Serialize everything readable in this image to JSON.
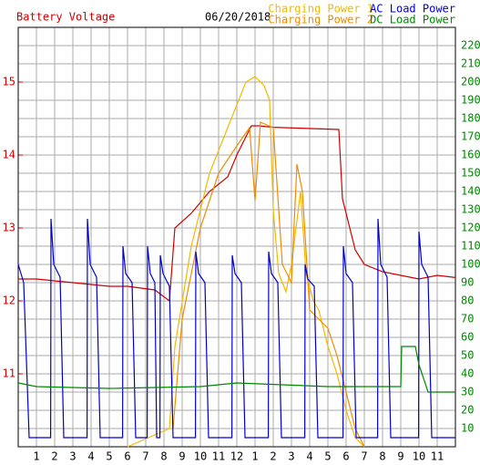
{
  "chart_data": {
    "type": "line",
    "title": "06/20/2018",
    "xlim": [
      0,
      24
    ],
    "xticks": [
      1,
      2,
      3,
      4,
      5,
      6,
      7,
      8,
      9,
      10,
      11,
      12,
      {
        "value": 13,
        "label": "1"
      },
      {
        "value": 14,
        "label": "2"
      },
      {
        "value": 15,
        "label": "3"
      },
      {
        "value": 16,
        "label": "4"
      },
      {
        "value": 17,
        "label": "5"
      },
      {
        "value": 18,
        "label": "6"
      },
      {
        "value": 19,
        "label": "7"
      },
      {
        "value": 20,
        "label": "8"
      },
      {
        "value": 21,
        "label": "9"
      },
      {
        "value": 22,
        "label": "10"
      },
      {
        "value": 23,
        "label": "11"
      }
    ],
    "ylim": [
      10,
      15.75
    ],
    "yticks": [
      11,
      12,
      13,
      14,
      15
    ],
    "y2lim": [
      0,
      230
    ],
    "y2ticks": [
      10,
      20,
      30,
      40,
      50,
      60,
      70,
      80,
      90,
      100,
      110,
      120,
      130,
      140,
      150,
      160,
      170,
      180,
      190,
      200,
      210,
      220
    ],
    "grid": true,
    "series": [
      {
        "name": "Battery Voltage",
        "color": "#d00000",
        "axis": "y",
        "x": [
          0,
          1,
          3,
          5,
          6,
          7.5,
          8.3,
          8.6,
          9.5,
          10.5,
          11.5,
          12,
          12.8,
          13.2,
          14,
          17.6,
          17.8,
          18.5,
          19,
          20,
          21,
          22,
          23,
          24
        ],
        "values": [
          12.3,
          12.3,
          12.25,
          12.2,
          12.2,
          12.15,
          12.0,
          13.0,
          13.2,
          13.5,
          13.7,
          14.0,
          14.4,
          14.4,
          14.38,
          14.35,
          13.4,
          12.7,
          12.5,
          12.4,
          12.35,
          12.3,
          12.35,
          12.32
        ]
      },
      {
        "name": "Charging Power 1",
        "color": "#f5b800",
        "axis": "y2",
        "x": [
          6,
          8.3,
          8.6,
          9.5,
          10.5,
          11.5,
          12.5,
          13.0,
          13.5,
          13.8,
          14.0,
          14.3,
          14.7,
          15.0,
          15.5,
          15.8,
          16.2,
          16.5,
          17.0,
          17.5,
          18.0,
          18.5,
          19.0
        ],
        "values": [
          0,
          10,
          55,
          110,
          150,
          175,
          200,
          203,
          198,
          190,
          130,
          95,
          85,
          100,
          140,
          95,
          80,
          75,
          55,
          40,
          20,
          5,
          0
        ]
      },
      {
        "name": "Charging Power 2",
        "color": "#f08c00",
        "axis": "y2",
        "x": [
          8.5,
          9,
          10,
          11,
          12,
          12.7,
          13.0,
          13.3,
          14.0,
          14.5,
          15.0,
          15.3,
          15.6,
          16.0,
          16.5,
          17.0,
          17.5,
          18.0,
          18.5,
          19
        ],
        "values": [
          10,
          70,
          120,
          150,
          165,
          175,
          135,
          178,
          175,
          100,
          90,
          155,
          140,
          75,
          70,
          65,
          50,
          30,
          10,
          0
        ]
      },
      {
        "name": "AC Load Power",
        "color": "#0000cc",
        "axis": "y2",
        "x": [
          0,
          0.3,
          0.6,
          1.78,
          1.8,
          1.95,
          2.3,
          2.5,
          3.78,
          3.8,
          3.95,
          4.3,
          4.5,
          5.73,
          5.75,
          5.9,
          6.25,
          6.45,
          7.08,
          7.1,
          7.25,
          7.5,
          7.6,
          7.78,
          7.8,
          7.95,
          8.3,
          8.5,
          9.73,
          9.75,
          9.9,
          10.25,
          10.45,
          11.73,
          11.75,
          11.9,
          12.25,
          12.45,
          13.73,
          13.75,
          13.9,
          14.25,
          14.45,
          15.73,
          15.75,
          15.9,
          16.25,
          16.45,
          17.83,
          17.85,
          18.0,
          18.35,
          18.55,
          19.73,
          19.75,
          19.9,
          20.25,
          20.45,
          21.98,
          22.0,
          22.15,
          22.5,
          22.7,
          24
        ],
        "values": [
          100,
          90,
          5,
          5,
          125,
          100,
          93,
          5,
          5,
          125,
          100,
          93,
          5,
          5,
          110,
          95,
          90,
          5,
          5,
          110,
          95,
          90,
          5,
          5,
          105,
          95,
          88,
          5,
          5,
          107,
          95,
          90,
          5,
          5,
          105,
          95,
          90,
          5,
          5,
          107,
          95,
          90,
          5,
          5,
          100,
          92,
          88,
          5,
          5,
          110,
          95,
          90,
          5,
          5,
          125,
          100,
          93,
          5,
          5,
          118,
          100,
          93,
          5,
          5
        ]
      },
      {
        "name": "DC Load Power",
        "color": "#008800",
        "axis": "y2",
        "x": [
          0,
          1,
          5,
          10,
          12,
          17,
          21,
          21.05,
          21.8,
          22,
          22.5,
          24
        ],
        "values": [
          35,
          33,
          32,
          33,
          35,
          33,
          33,
          55,
          55,
          45,
          30,
          30
        ]
      }
    ]
  }
}
